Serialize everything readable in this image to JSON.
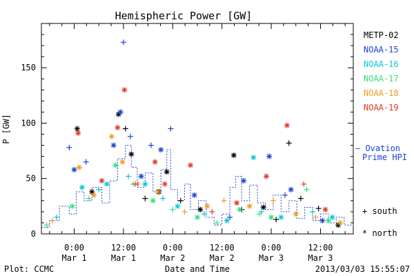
{
  "chart_data": {
    "type": "scatter",
    "title": "Hemispheric Power [GW]",
    "ylabel": "P [GW]",
    "xlabel": "Date and Time",
    "ylim": [
      0,
      190
    ],
    "xlim": [
      -0.333,
      2.833
    ],
    "yticks": [
      0,
      50,
      100,
      150
    ],
    "xticks": [
      {
        "x": 0.0,
        "time": "0:00",
        "date": "Mar 1"
      },
      {
        "x": 0.5,
        "time": "12:00",
        "date": "Mar 1"
      },
      {
        "x": 1.0,
        "time": "0:00",
        "date": "Mar 2"
      },
      {
        "x": 1.5,
        "time": "12:00",
        "date": "Mar 2"
      },
      {
        "x": 2.0,
        "time": "0:00",
        "date": "Mar 3"
      },
      {
        "x": 2.5,
        "time": "12:00",
        "date": "Mar 3"
      }
    ],
    "series": [
      {
        "name": "METP-02",
        "color": "#000000",
        "points": [
          {
            "x": 0.03,
            "y": 95,
            "m": "*"
          },
          {
            "x": 0.18,
            "y": 38,
            "m": "*"
          },
          {
            "x": 0.45,
            "y": 108,
            "m": "*"
          },
          {
            "x": 0.52,
            "y": 95,
            "m": "+"
          },
          {
            "x": 0.58,
            "y": 72,
            "m": "*"
          },
          {
            "x": 0.72,
            "y": 32,
            "m": "+"
          },
          {
            "x": 0.86,
            "y": 38,
            "m": "*"
          },
          {
            "x": 0.94,
            "y": 56,
            "m": "*"
          },
          {
            "x": 1.08,
            "y": 30,
            "m": "+"
          },
          {
            "x": 1.28,
            "y": 22,
            "m": "*"
          },
          {
            "x": 1.62,
            "y": 71,
            "m": "*"
          },
          {
            "x": 1.7,
            "y": 22,
            "m": "+"
          },
          {
            "x": 1.92,
            "y": 24,
            "m": "*"
          },
          {
            "x": 2.05,
            "y": 13,
            "m": "+"
          },
          {
            "x": 2.18,
            "y": 82,
            "m": "+"
          },
          {
            "x": 2.3,
            "y": 32,
            "m": "+"
          },
          {
            "x": 2.48,
            "y": 23,
            "m": "+"
          },
          {
            "x": 2.68,
            "y": 8,
            "m": "*"
          }
        ]
      },
      {
        "name": "NOAA-15",
        "color": "#1a3fd6",
        "points": [
          {
            "x": -0.05,
            "y": 78,
            "m": "+"
          },
          {
            "x": 0.0,
            "y": 58,
            "m": "*"
          },
          {
            "x": 0.12,
            "y": 65,
            "m": "+"
          },
          {
            "x": 0.4,
            "y": 80,
            "m": "*"
          },
          {
            "x": 0.47,
            "y": 110,
            "m": "*"
          },
          {
            "x": 0.5,
            "y": 173,
            "m": "+"
          },
          {
            "x": 0.57,
            "y": 88,
            "m": "+"
          },
          {
            "x": 0.68,
            "y": 52,
            "m": "*"
          },
          {
            "x": 0.78,
            "y": 80,
            "m": "+"
          },
          {
            "x": 0.88,
            "y": 76,
            "m": "*"
          },
          {
            "x": 0.98,
            "y": 95,
            "m": "+"
          },
          {
            "x": 1.22,
            "y": 35,
            "m": "*"
          },
          {
            "x": 1.58,
            "y": 15,
            "m": "+"
          },
          {
            "x": 1.72,
            "y": 48,
            "m": "*"
          },
          {
            "x": 1.98,
            "y": 70,
            "m": "*"
          },
          {
            "x": 2.14,
            "y": 35,
            "m": "+"
          },
          {
            "x": 2.2,
            "y": 40,
            "m": "*"
          },
          {
            "x": 2.52,
            "y": 12,
            "m": "*"
          }
        ]
      },
      {
        "name": "NOAA-16",
        "color": "#00c8d2",
        "points": [
          {
            "x": -0.18,
            "y": 15,
            "m": "+"
          },
          {
            "x": 0.08,
            "y": 42,
            "m": "*"
          },
          {
            "x": 0.25,
            "y": 40,
            "m": "+"
          },
          {
            "x": 0.33,
            "y": 45,
            "m": "*"
          },
          {
            "x": 0.55,
            "y": 52,
            "m": "+"
          },
          {
            "x": 0.72,
            "y": 45,
            "m": "*"
          },
          {
            "x": 0.9,
            "y": 32,
            "m": "+"
          },
          {
            "x": 1.05,
            "y": 25,
            "m": "*"
          },
          {
            "x": 1.32,
            "y": 18,
            "m": "+"
          },
          {
            "x": 1.55,
            "y": 12,
            "m": "*"
          },
          {
            "x": 1.82,
            "y": 69,
            "m": "*"
          },
          {
            "x": 1.9,
            "y": 20,
            "m": "+"
          },
          {
            "x": 2.1,
            "y": 15,
            "m": "*"
          },
          {
            "x": 2.42,
            "y": 20,
            "m": "+"
          },
          {
            "x": 2.62,
            "y": 15,
            "m": "*"
          }
        ]
      },
      {
        "name": "NOAA-17",
        "color": "#2ee07a",
        "points": [
          {
            "x": -0.28,
            "y": 8,
            "m": "+"
          },
          {
            "x": -0.02,
            "y": 25,
            "m": "*"
          },
          {
            "x": 0.15,
            "y": 32,
            "m": "+"
          },
          {
            "x": 0.42,
            "y": 62,
            "m": "*"
          },
          {
            "x": 0.6,
            "y": 45,
            "m": "+"
          },
          {
            "x": 0.8,
            "y": 30,
            "m": "*"
          },
          {
            "x": 1.0,
            "y": 22,
            "m": "+"
          },
          {
            "x": 1.25,
            "y": 15,
            "m": "*"
          },
          {
            "x": 1.45,
            "y": 10,
            "m": "+"
          },
          {
            "x": 1.68,
            "y": 22,
            "m": "*"
          },
          {
            "x": 1.88,
            "y": 18,
            "m": "+"
          },
          {
            "x": 2.0,
            "y": 15,
            "m": "*"
          },
          {
            "x": 2.36,
            "y": 40,
            "m": "+"
          },
          {
            "x": 2.58,
            "y": 12,
            "m": "*"
          }
        ]
      },
      {
        "name": "NOAA-18",
        "color": "#f09a1e",
        "points": [
          {
            "x": -0.22,
            "y": 12,
            "m": "+"
          },
          {
            "x": 0.05,
            "y": 60,
            "m": "*"
          },
          {
            "x": 0.2,
            "y": 35,
            "m": "*"
          },
          {
            "x": 0.38,
            "y": 88,
            "m": "*"
          },
          {
            "x": 0.49,
            "y": 65,
            "m": "*"
          },
          {
            "x": 0.65,
            "y": 45,
            "m": "+"
          },
          {
            "x": 0.85,
            "y": 38,
            "m": "*"
          },
          {
            "x": 1.12,
            "y": 20,
            "m": "+"
          },
          {
            "x": 1.35,
            "y": 25,
            "m": "*"
          },
          {
            "x": 1.52,
            "y": 30,
            "m": "+"
          },
          {
            "x": 1.78,
            "y": 25,
            "m": "*"
          },
          {
            "x": 2.02,
            "y": 30,
            "m": "+"
          },
          {
            "x": 2.25,
            "y": 18,
            "m": "*"
          },
          {
            "x": 2.45,
            "y": 15,
            "m": "+"
          },
          {
            "x": 2.7,
            "y": 10,
            "m": "*"
          }
        ]
      },
      {
        "name": "NOAA-19",
        "color": "#e03a1e",
        "points": [
          {
            "x": 0.04,
            "y": 91,
            "m": "*"
          },
          {
            "x": 0.28,
            "y": 48,
            "m": "*"
          },
          {
            "x": 0.44,
            "y": 96,
            "m": "*"
          },
          {
            "x": 0.51,
            "y": 130,
            "m": "*"
          },
          {
            "x": 0.62,
            "y": 45,
            "m": "+"
          },
          {
            "x": 0.82,
            "y": 65,
            "m": "*"
          },
          {
            "x": 0.92,
            "y": 45,
            "m": "*"
          },
          {
            "x": 1.18,
            "y": 62,
            "m": "*"
          },
          {
            "x": 1.4,
            "y": 20,
            "m": "+"
          },
          {
            "x": 1.65,
            "y": 28,
            "m": "*"
          },
          {
            "x": 1.95,
            "y": 52,
            "m": "*"
          },
          {
            "x": 2.16,
            "y": 98,
            "m": "*"
          },
          {
            "x": 2.33,
            "y": 45,
            "m": "+"
          },
          {
            "x": 2.55,
            "y": 22,
            "m": "*"
          }
        ]
      }
    ],
    "ovation": {
      "name_line1": "— Ovation",
      "name_line2": "Prime HPI",
      "color": "#1a3fd6",
      "line": [
        [
          -0.333,
          6
        ],
        [
          -0.25,
          12
        ],
        [
          -0.15,
          25
        ],
        [
          -0.05,
          18
        ],
        [
          0.02,
          38
        ],
        [
          0.1,
          30
        ],
        [
          0.18,
          42
        ],
        [
          0.28,
          28
        ],
        [
          0.36,
          48
        ],
        [
          0.44,
          68
        ],
        [
          0.52,
          80
        ],
        [
          0.58,
          60
        ],
        [
          0.64,
          42
        ],
        [
          0.72,
          55
        ],
        [
          0.8,
          38
        ],
        [
          0.88,
          58
        ],
        [
          0.94,
          76
        ],
        [
          0.98,
          40
        ],
        [
          1.05,
          30
        ],
        [
          1.12,
          45
        ],
        [
          1.18,
          22
        ],
        [
          1.26,
          30
        ],
        [
          1.34,
          15
        ],
        [
          1.42,
          8
        ],
        [
          1.5,
          18
        ],
        [
          1.58,
          42
        ],
        [
          1.64,
          52
        ],
        [
          1.7,
          30
        ],
        [
          1.78,
          44
        ],
        [
          1.86,
          28
        ],
        [
          1.94,
          22
        ],
        [
          2.02,
          35
        ],
        [
          2.1,
          20
        ],
        [
          2.18,
          30
        ],
        [
          2.26,
          14
        ],
        [
          2.34,
          24
        ],
        [
          2.42,
          12
        ],
        [
          2.5,
          18
        ],
        [
          2.58,
          10
        ],
        [
          2.66,
          15
        ],
        [
          2.74,
          8
        ],
        [
          2.833,
          10
        ]
      ]
    },
    "marker_legend": {
      "south": "+ south",
      "north": "* north"
    },
    "grid": false
  },
  "footer": {
    "plot_label": "Plot: CCMC",
    "timestamp": "2013/03/03 15:55:07"
  }
}
